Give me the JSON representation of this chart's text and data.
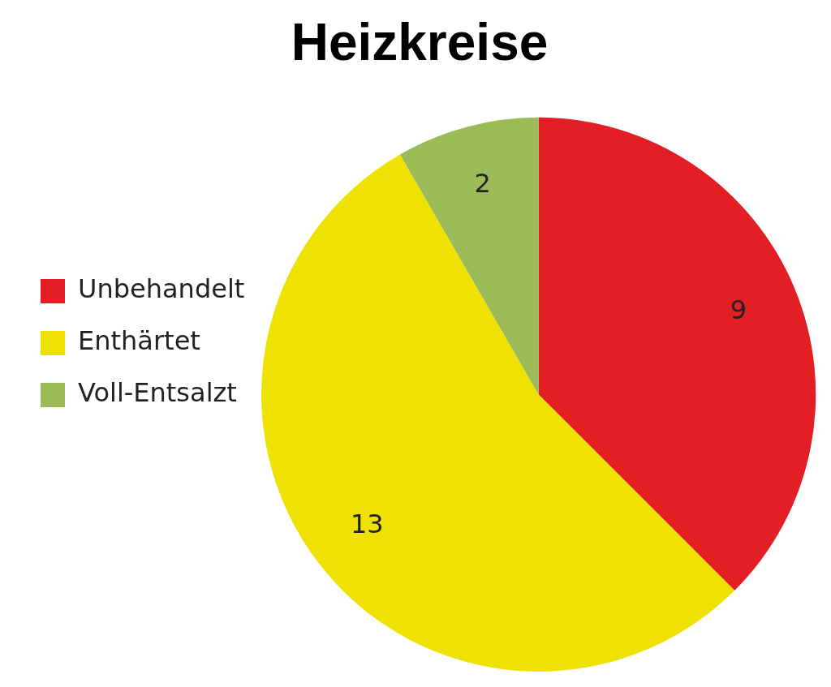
{
  "chart_data": {
    "type": "pie",
    "title": "Heizkreise",
    "categories": [
      "Unbehandelt",
      "Enthärtet",
      "Voll-Entsalzt"
    ],
    "values": [
      9,
      13,
      2
    ],
    "colors": [
      "#e31e24",
      "#efe203",
      "#9bbb59"
    ],
    "data_labels": true,
    "legend": "left"
  }
}
